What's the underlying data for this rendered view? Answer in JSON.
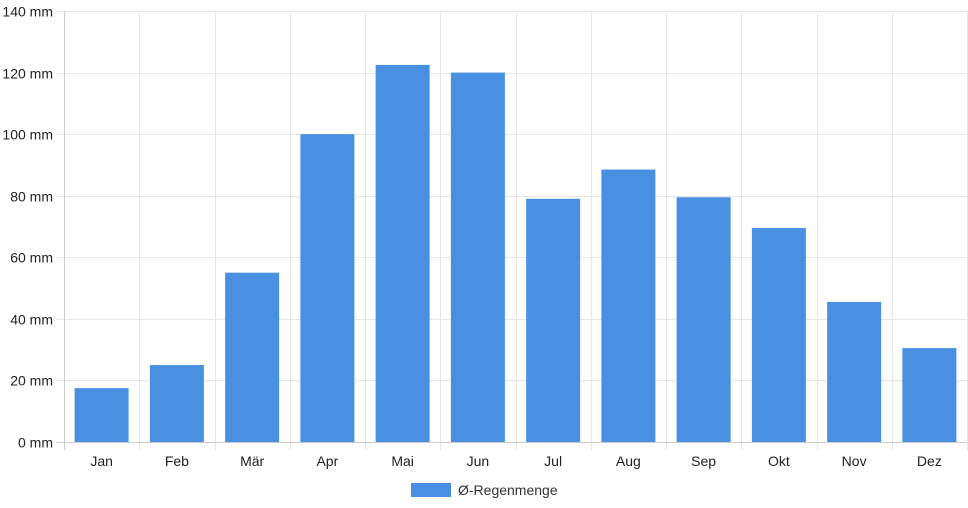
{
  "chart_data": {
    "type": "bar",
    "categories": [
      "Jan",
      "Feb",
      "Mär",
      "Apr",
      "Mai",
      "Jun",
      "Jul",
      "Aug",
      "Sep",
      "Okt",
      "Nov",
      "Dez"
    ],
    "series": [
      {
        "name": "Ø-Regenmenge",
        "values": [
          17.5,
          25,
          55,
          100,
          122.5,
          120,
          79,
          88.5,
          79.5,
          69.5,
          45.5,
          30.5
        ],
        "color": "#4a90e2"
      }
    ],
    "y_ticks": [
      "0 mm",
      "20 mm",
      "40 mm",
      "60 mm",
      "80 mm",
      "100 mm",
      "120 mm",
      "140 mm"
    ],
    "ylim": [
      0,
      140
    ],
    "grid": true,
    "legend": "bottom"
  }
}
